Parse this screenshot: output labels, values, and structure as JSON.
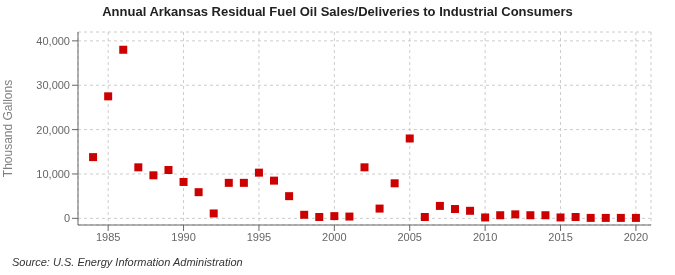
{
  "chart_data": {
    "type": "scatter",
    "title": "Annual Arkansas Residual Fuel Oil Sales/Deliveries to Industrial Consumers",
    "ylabel": "Thousand Gallons",
    "source": "Source: U.S. Energy Information Administration",
    "color": "#cc0000",
    "marker": "square",
    "grid": true,
    "xlim": [
      1983,
      2021
    ],
    "xticks": [
      1985,
      1990,
      1995,
      2000,
      2005,
      2010,
      2015,
      2020
    ],
    "ylim": [
      -1500,
      42000
    ],
    "yticks": [
      0,
      {
        "value": 10000,
        "label": "10,000"
      },
      {
        "value": 20000,
        "label": "20,000"
      },
      {
        "value": 30000,
        "label": "30,000"
      },
      {
        "value": 40000,
        "label": "40,000"
      }
    ],
    "x": [
      1984,
      1985,
      1986,
      1987,
      1988,
      1989,
      1990,
      1991,
      1992,
      1993,
      1994,
      1995,
      1996,
      1997,
      1998,
      1999,
      2000,
      2001,
      2002,
      2003,
      2004,
      2005,
      2006,
      2007,
      2008,
      2009,
      2010,
      2011,
      2012,
      2013,
      2014,
      2015,
      2016,
      2017,
      2018,
      2019,
      2020
    ],
    "values": [
      13800,
      27500,
      38000,
      11500,
      9700,
      10900,
      8200,
      5900,
      1100,
      8000,
      8000,
      10300,
      8500,
      5000,
      800,
      300,
      500,
      400,
      11500,
      2200,
      7900,
      18000,
      300,
      2800,
      2100,
      1700,
      200,
      700,
      900,
      700,
      700,
      200,
      300,
      100,
      100,
      100,
      100
    ]
  }
}
